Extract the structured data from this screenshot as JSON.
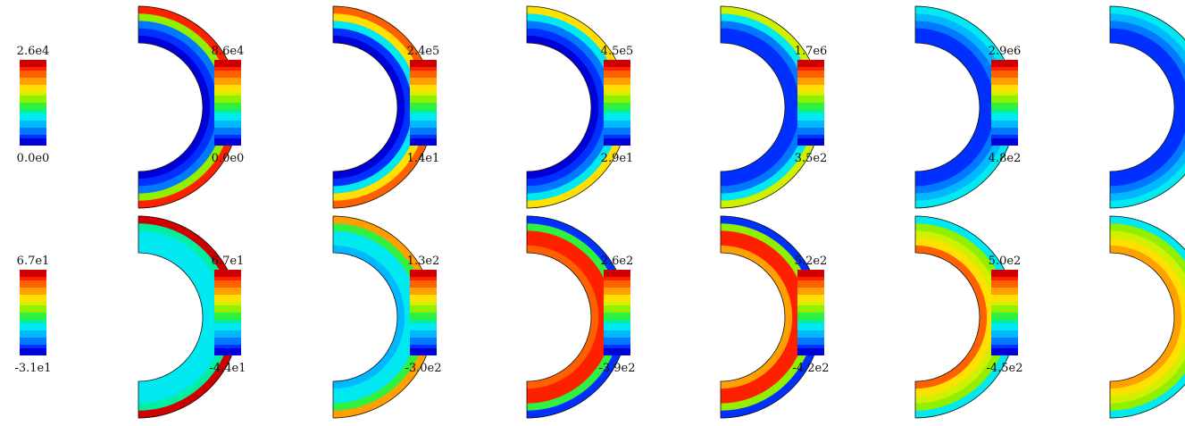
{
  "colormap": [
    "#0000d8",
    "#0030ff",
    "#0078ff",
    "#00b8ff",
    "#00e8f0",
    "#00f0a0",
    "#30f040",
    "#90f000",
    "#d0f000",
    "#ffe000",
    "#ffa000",
    "#ff6000",
    "#ff2000",
    "#d00000"
  ],
  "rows": [
    {
      "panels": [
        {
          "label_max": "2.6e4",
          "label_min": "0.0e0",
          "levels": [
            0.05,
            0.08,
            0.15,
            0.55,
            0.9
          ]
        },
        {
          "label_max": "8.6e4",
          "label_min": "0.0e0",
          "levels": [
            0.06,
            0.12,
            0.3,
            0.7,
            0.85
          ]
        },
        {
          "label_max": "2.4e5",
          "label_min": "1.4e1",
          "levels": [
            0.06,
            0.1,
            0.18,
            0.35,
            0.7
          ]
        },
        {
          "label_max": "4.5e5",
          "label_min": "2.9e1",
          "levels": [
            0.1,
            0.14,
            0.2,
            0.3,
            0.6
          ]
        },
        {
          "label_max": "1.7e6",
          "label_min": "3.5e2",
          "levels": [
            0.08,
            0.12,
            0.18,
            0.22,
            0.3
          ]
        },
        {
          "label_max": "2.9e6",
          "label_min": "4.8e2",
          "levels": [
            0.1,
            0.14,
            0.2,
            0.25,
            0.3
          ]
        }
      ]
    },
    {
      "panels": [
        {
          "label_max": "6.7e1",
          "label_min": "-3.1e1",
          "levels": [
            0.3,
            0.32,
            0.34,
            0.36,
            0.95
          ]
        },
        {
          "label_max": "6.7e1",
          "label_min": "-4.4e1",
          "levels": [
            0.28,
            0.3,
            0.34,
            0.45,
            0.75
          ]
        },
        {
          "label_max": "1.3e2",
          "label_min": "-3.0e2",
          "levels": [
            0.85,
            0.9,
            0.88,
            0.45,
            0.1
          ]
        },
        {
          "label_max": "2.6e2",
          "label_min": "-3.9e2",
          "levels": [
            0.78,
            0.9,
            0.88,
            0.5,
            0.12
          ]
        },
        {
          "label_max": "5.2e2",
          "label_min": "-4.2e2",
          "levels": [
            0.8,
            0.7,
            0.62,
            0.5,
            0.3
          ]
        },
        {
          "label_max": "5.0e2",
          "label_min": "-4.5e2",
          "levels": [
            0.75,
            0.7,
            0.62,
            0.55,
            0.35
          ]
        }
      ]
    }
  ]
}
